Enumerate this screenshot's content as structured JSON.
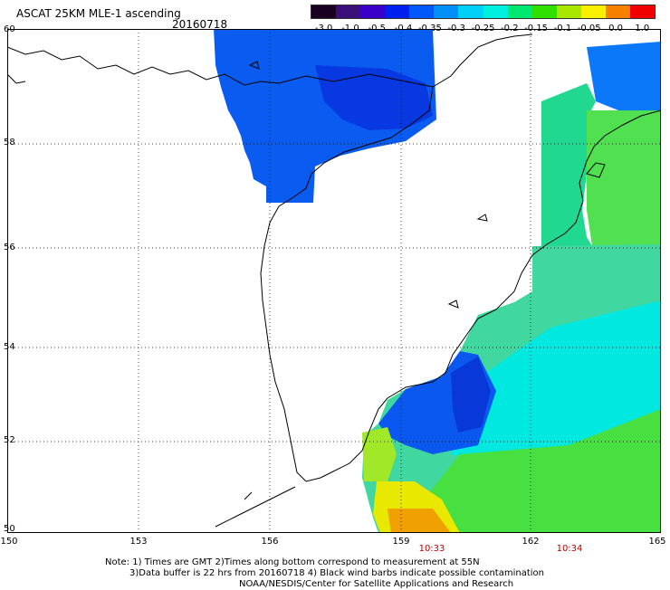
{
  "header": {
    "title": "ASCAT 25KM MLE-1 ascending",
    "date": "20160718"
  },
  "colorbar": {
    "labels": [
      "-3.0",
      "-1.0",
      "-0.5",
      "-0.4",
      "-0.35",
      "-0.3",
      "-0.25",
      "-0.2",
      "-0.15",
      "-0.1",
      "-0.05",
      "0.0",
      "1.0"
    ],
    "colors": [
      "#1a0020",
      "#3a1078",
      "#3800c8",
      "#0020f0",
      "#0058f8",
      "#0090f8",
      "#00d0f8",
      "#00f0e0",
      "#00e870",
      "#30e000",
      "#a8e800",
      "#f8f000",
      "#f88000",
      "#f00000"
    ]
  },
  "map": {
    "lat_labels": [
      "60",
      "58",
      "56",
      "54",
      "52",
      "50"
    ],
    "lon_labels": [
      "150",
      "153",
      "156",
      "159",
      "162",
      "165"
    ],
    "land_color": "#ffffff",
    "grid_style": "dotted"
  },
  "times": [
    "10:33",
    "10:34"
  ],
  "notes": {
    "line1": "Note: 1) Times are GMT 2)Times along bottom correspond to measurement at 55N",
    "line2": "3)Data buffer is 22 hrs from 20160718 4) Black wind barbs indicate possible contamination",
    "line3": "NOAA/NESDIS/Center for Satellite Applications and Research"
  }
}
